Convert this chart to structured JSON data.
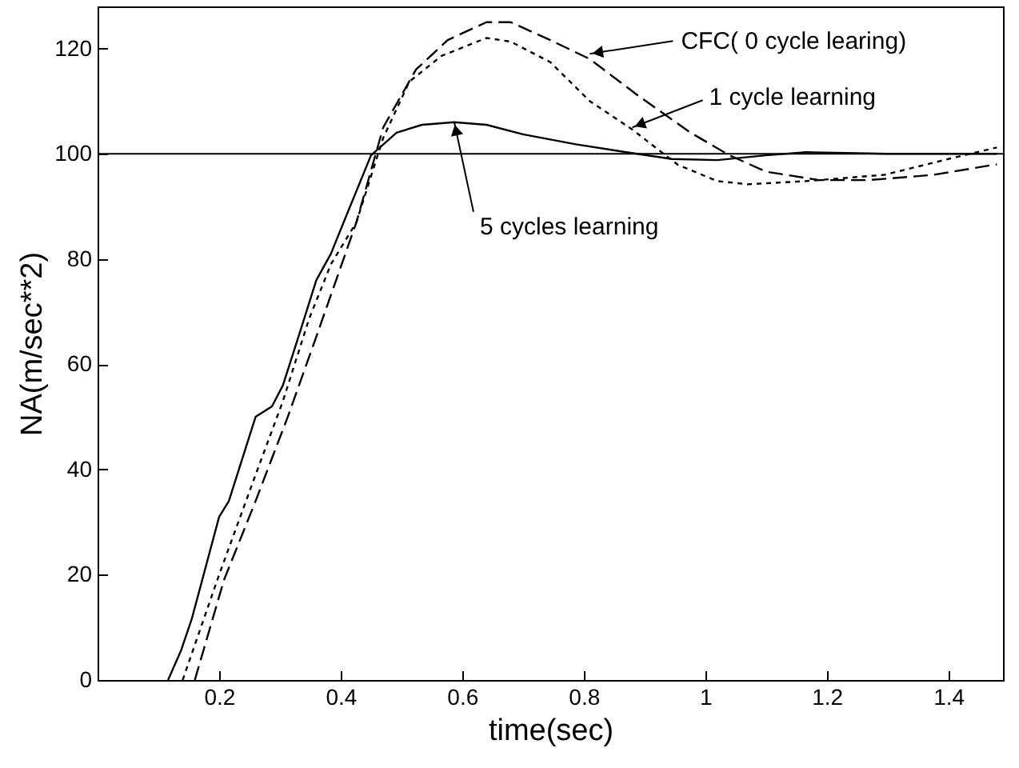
{
  "chart_data": {
    "type": "line",
    "xlabel": "time(sec)",
    "ylabel": "NA(m/sec**2)",
    "xlim": [
      0,
      1.49
    ],
    "ylim": [
      0,
      128
    ],
    "xticks": [
      0.2,
      0.4,
      0.6,
      0.8,
      1,
      1.2,
      1.4
    ],
    "yticks": [
      0,
      20,
      40,
      60,
      80,
      100,
      120
    ],
    "grid": false,
    "series": [
      {
        "color": "#000000",
        "line_style": "dashed",
        "x": [
          0.16,
          0.208,
          0.26,
          0.313,
          0.358,
          0.426,
          0.47,
          0.524,
          0.576,
          0.64,
          0.68,
          0.745,
          0.81,
          0.89,
          0.976,
          1.04,
          1.1,
          1.187,
          1.27,
          1.376,
          1.48
        ],
        "values": [
          0,
          19,
          34,
          50,
          64.6,
          87,
          105,
          116,
          121.6,
          125,
          125,
          121.6,
          118,
          111,
          104,
          99.7,
          96.6,
          95,
          95,
          96,
          98
        ]
      },
      {
        "color": "#000000",
        "line_style": "dotted",
        "x": [
          0.14,
          0.2,
          0.26,
          0.305,
          0.348,
          0.384,
          0.426,
          0.47,
          0.513,
          0.566,
          0.64,
          0.68,
          0.745,
          0.81,
          0.88,
          0.955,
          1.02,
          1.07,
          1.166,
          1.295,
          1.4,
          1.48
        ],
        "values": [
          0,
          20,
          39,
          53,
          68.6,
          79,
          87,
          103,
          113.7,
          118.6,
          122,
          121.3,
          117.4,
          110,
          104.6,
          97.9,
          94.8,
          94.2,
          94.8,
          96,
          99,
          101.2
        ]
      },
      {
        "color": "#000000",
        "line_style": "solid",
        "x": [
          0.116,
          0.137,
          0.155,
          0.2,
          0.216,
          0.26,
          0.287,
          0.305,
          0.33,
          0.36,
          0.384,
          0.405,
          0.45,
          0.492,
          0.534,
          0.587,
          0.64,
          0.7,
          0.787,
          0.87,
          0.945,
          1.02,
          1.1,
          1.166,
          1.3,
          1.48
        ],
        "values": [
          0,
          5.5,
          11.6,
          31,
          34,
          50,
          52,
          56,
          65,
          76,
          81,
          87,
          99.7,
          104,
          105.5,
          106,
          105.5,
          103.7,
          101.8,
          100.3,
          99,
          98.8,
          99.7,
          100.3,
          100,
          100
        ]
      }
    ],
    "ref_lines": [
      {
        "axis": "y",
        "value": 100,
        "color": "#000000",
        "line_style": "solid"
      }
    ],
    "annotations": [
      {
        "text": "CFC( 0 cycle learing)",
        "x": 0.81,
        "y": 119
      },
      {
        "text": "1 cycle learning",
        "x": 0.88,
        "y": 105
      },
      {
        "text": "5 cycles learning",
        "x": 0.587,
        "y": 106
      }
    ]
  }
}
